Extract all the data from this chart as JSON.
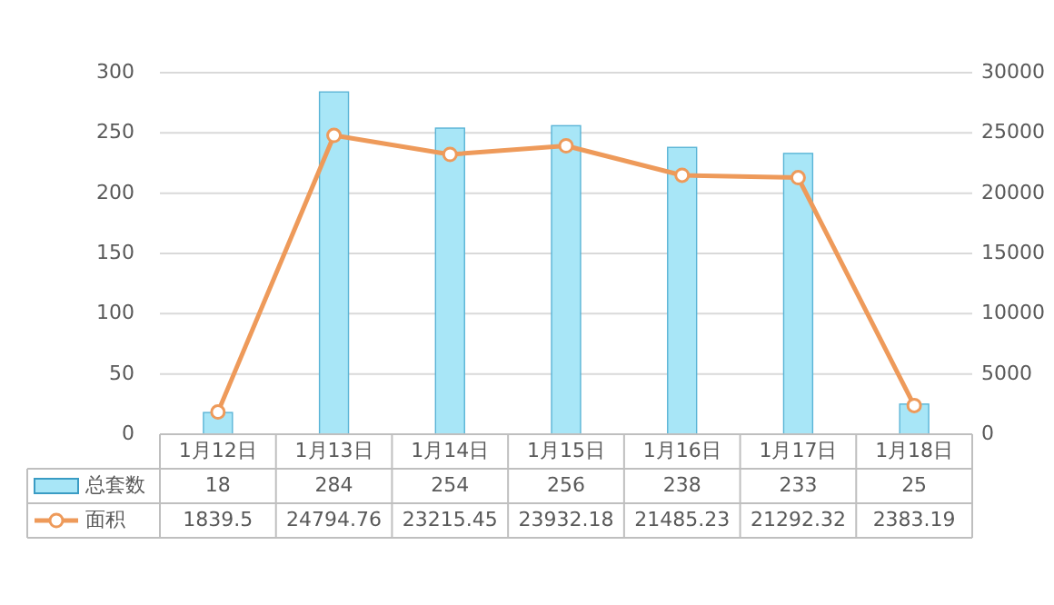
{
  "chart_data": {
    "type": "bar",
    "categories": [
      "1月12日",
      "1月13日",
      "1月14日",
      "1月15日",
      "1月16日",
      "1月17日",
      "1月18日"
    ],
    "series": [
      {
        "name": "总套数",
        "color": "#a8e6f7",
        "values": [
          18,
          284,
          254,
          256,
          238,
          233,
          25
        ]
      },
      {
        "name": "面积",
        "type": "line",
        "axis": "y2",
        "color": "#ee9a5a",
        "marker": "circle",
        "values": [
          1839.5,
          24794.76,
          23215.45,
          23932.18,
          21485.23,
          21292.32,
          2383.19
        ]
      }
    ],
    "ylim": [
      0,
      300
    ],
    "yticks": [
      0,
      50,
      100,
      150,
      200,
      250,
      300
    ],
    "y2lim": [
      0,
      30000
    ],
    "y2ticks": [
      0,
      5000,
      10000,
      15000,
      20000,
      25000,
      30000
    ],
    "grid": "y",
    "legend": "bottom",
    "data_labels": true
  }
}
